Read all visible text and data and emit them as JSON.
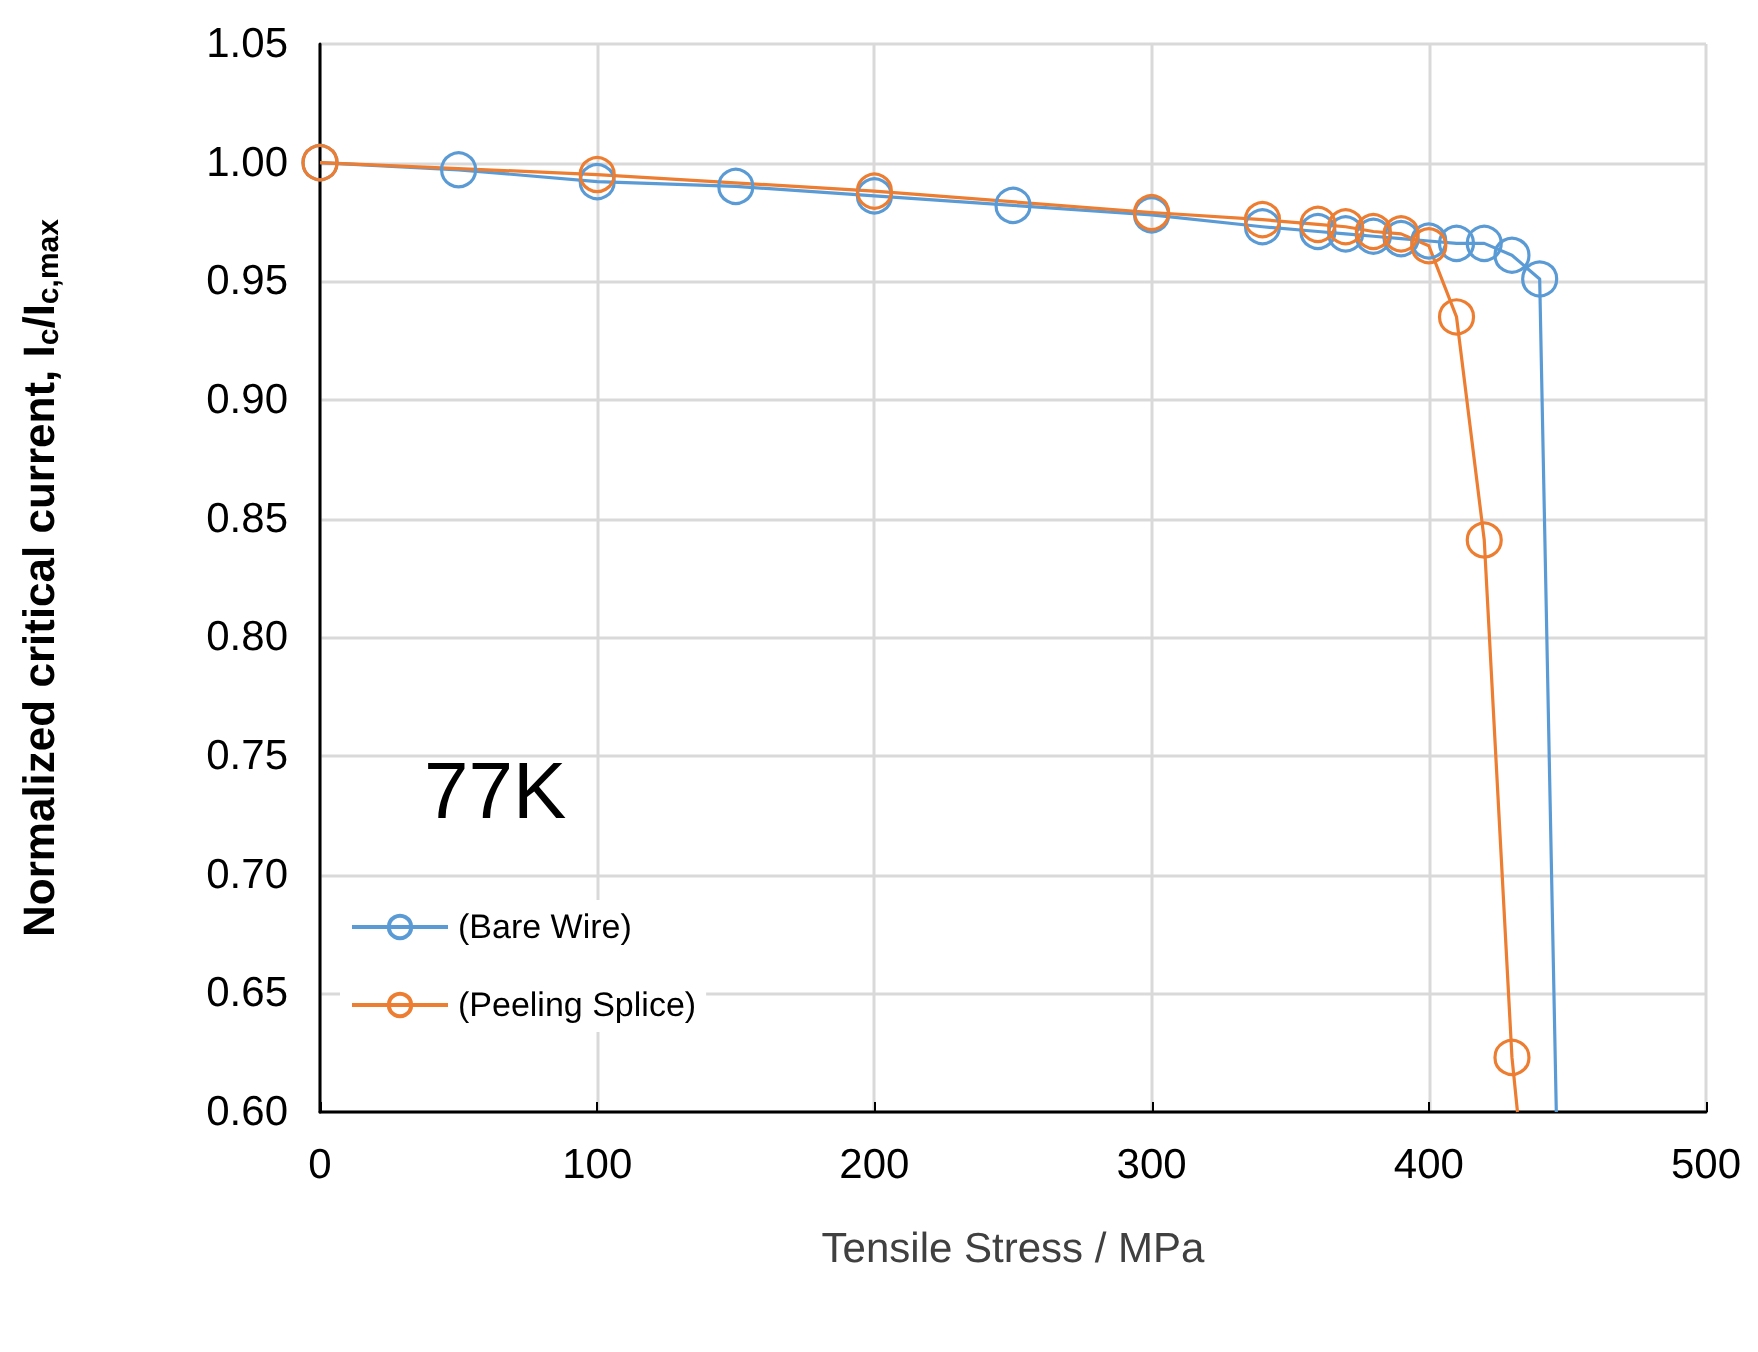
{
  "chart_data": {
    "type": "line",
    "xlabel": "Tensile Stress / MPa",
    "ylabel": "Normalized critical current, I$_{c}$/I$_{c,max}$",
    "xlim": [
      0,
      500
    ],
    "xticks": [
      0,
      100,
      200,
      300,
      400,
      500
    ],
    "ylim": [
      0.6,
      1.05
    ],
    "yticks": [
      {
        "value": 0.6,
        "label": "0.60"
      },
      0.65,
      {
        "value": 0.7,
        "label": "0.70"
      },
      0.75,
      {
        "value": 0.8,
        "label": "0.80"
      },
      0.85,
      {
        "value": 0.9,
        "label": "0.90"
      },
      0.95,
      {
        "value": 1.0,
        "label": "1.00"
      },
      1.05
    ],
    "grid": true,
    "legend": "bottom left",
    "marker": "circle",
    "line_style": "solid",
    "annotations": [
      "77K"
    ],
    "series": [
      {
        "name": "(Bare Wire)",
        "color": "#5b9bd5",
        "x": [
          0,
          50,
          100,
          150,
          200,
          250,
          300,
          340,
          360,
          370,
          380,
          390,
          400,
          410,
          420,
          430,
          440,
          446
        ],
        "values": [
          1.0,
          0.997,
          0.992,
          0.99,
          0.986,
          0.982,
          0.978,
          0.973,
          0.971,
          0.97,
          0.969,
          0.968,
          0.967,
          0.966,
          0.966,
          0.961,
          0.951,
          0.6
        ]
      },
      {
        "name": "(Peeling Splice)",
        "color": "#ed7d31",
        "x": [
          0,
          100,
          200,
          300,
          340,
          360,
          370,
          380,
          390,
          400,
          410,
          420,
          430,
          432
        ],
        "values": [
          1.0,
          0.995,
          0.988,
          0.979,
          0.976,
          0.974,
          0.973,
          0.971,
          0.97,
          0.965,
          0.935,
          0.841,
          0.623,
          0.6
        ]
      }
    ]
  }
}
